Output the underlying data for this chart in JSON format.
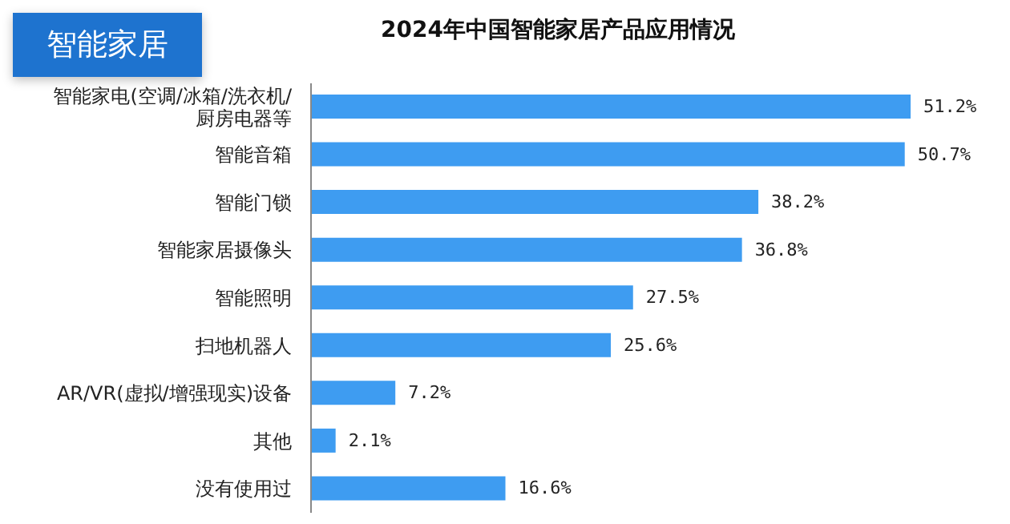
{
  "chart_data": {
    "type": "bar",
    "orientation": "horizontal",
    "title": "2024年中国智能家居产品应用情况",
    "annotations": [
      "智能家居"
    ],
    "categories": [
      "智能家电(空调/冰箱/洗衣机/厨房电器等",
      "智能音箱",
      "智能门锁",
      "智能家居摄像头",
      "智能照明",
      "扫地机器人",
      "AR/VR(虚拟/增强现实)设备",
      "其他",
      "没有使用过"
    ],
    "values": [
      51.2,
      50.7,
      38.2,
      36.8,
      27.5,
      25.6,
      7.2,
      2.1,
      16.6
    ],
    "value_labels": [
      "51.2%",
      "50.7%",
      "38.2%",
      "36.8%",
      "27.5%",
      "25.6%",
      "7.2%",
      "2.1%",
      "16.6%"
    ],
    "color": "#3e9cf1"
  }
}
